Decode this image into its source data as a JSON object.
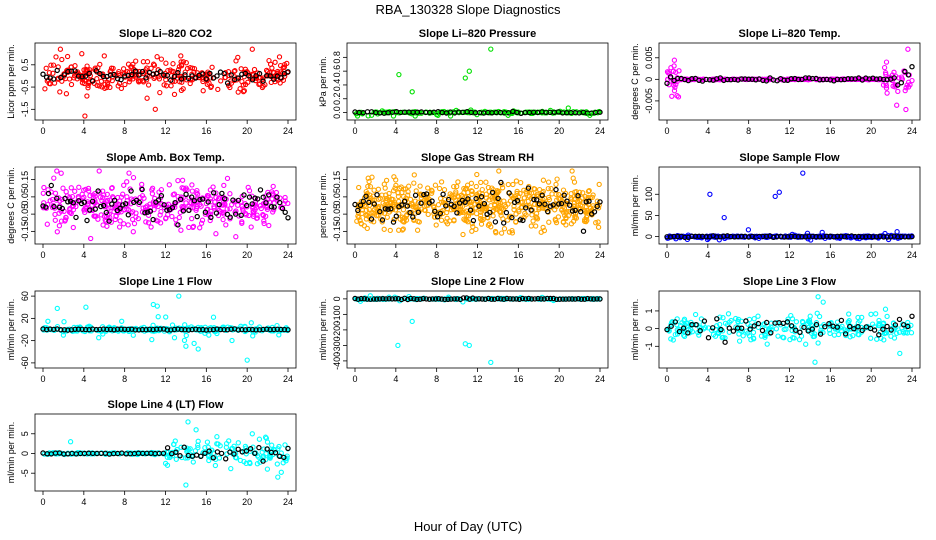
{
  "title": "RBA_130328  Slope Diagnostics",
  "xlabel": "Hour of Day (UTC)",
  "colors": {
    "black": "#000000",
    "red": "#ff0000",
    "green": "#00e000",
    "magenta": "#ff00ff",
    "orange": "#ffa500",
    "blue": "#0000ff",
    "cyan": "#00ffff"
  },
  "chart_data": [
    {
      "type": "scatter",
      "title": "Slope Li–820 CO2",
      "ylabel": "Licor ppm per min.",
      "xlim": [
        0,
        24
      ],
      "ylim": [
        -1.8,
        1.3
      ],
      "xticks": [
        "0",
        "4",
        "8",
        "12",
        "16",
        "20",
        "24"
      ],
      "yticks": [
        {
          "v": -1.5,
          "t": "-1.5"
        },
        {
          "v": -0.5,
          "t": "-0.5"
        },
        {
          "v": 0.5,
          "t": "0.5"
        }
      ],
      "color": "red",
      "pattern": "noisy",
      "sd": 0.32,
      "n": 320,
      "nb": 70,
      "bsd": 0.12,
      "outliers": [
        [
          1.7,
          1.2
        ],
        [
          3.8,
          1.0
        ],
        [
          4.1,
          -1.8
        ],
        [
          4.3,
          -0.9
        ],
        [
          6.0,
          0.9
        ],
        [
          10.2,
          -1.0
        ],
        [
          11.0,
          -1.5
        ],
        [
          13.5,
          0.9
        ],
        [
          20.5,
          1.2
        ]
      ]
    },
    {
      "type": "scatter",
      "title": "Slope Li–820 Pressure",
      "ylabel": "kPa per min.",
      "xlim": [
        0,
        24
      ],
      "ylim": [
        -0.05,
        0.95
      ],
      "xticks": [
        "0",
        "4",
        "8",
        "12",
        "16",
        "20",
        "24"
      ],
      "yticks": [
        {
          "v": 0,
          "t": "0.0"
        },
        {
          "v": 0.2,
          "t": "0.2"
        },
        {
          "v": 0.4,
          "t": "0.4"
        },
        {
          "v": 0.6,
          "t": "0.6"
        },
        {
          "v": 0.8,
          "t": "0.8"
        }
      ],
      "color": "green",
      "pattern": "flat",
      "sd": 0.015,
      "n": 200,
      "nb": 60,
      "bsd": 0.006,
      "outliers": [
        [
          4.3,
          0.55
        ],
        [
          5.6,
          0.3
        ],
        [
          10.8,
          0.5
        ],
        [
          11.2,
          0.6
        ],
        [
          13.3,
          0.92
        ],
        [
          8.0,
          -0.03
        ],
        [
          15.0,
          -0.04
        ],
        [
          23.0,
          -0.04
        ]
      ]
    },
    {
      "type": "scatter",
      "title": "Slope Li–820 Temp.",
      "ylabel": "degrees C per min.",
      "xlim": [
        0,
        24
      ],
      "ylim": [
        -0.0085,
        0.0075
      ],
      "xticks": [
        "0",
        "4",
        "8",
        "12",
        "16",
        "20",
        "24"
      ],
      "yticks": [
        {
          "v": -0.005,
          "t": "-0.005"
        },
        {
          "v": 0,
          "t": "0"
        },
        {
          "v": 0.005,
          "t": "0.005"
        }
      ],
      "color": "magenta",
      "pattern": "edges",
      "sd": 0.0018,
      "n": 260,
      "nb": 70,
      "bsd": 0.00015,
      "outliers": [
        [
          23.6,
          0.007
        ],
        [
          23.4,
          -0.007
        ],
        [
          21.5,
          0.004
        ],
        [
          22.5,
          -0.006
        ]
      ]
    },
    {
      "type": "scatter",
      "title": "Slope Amb. Box Temp.",
      "ylabel": "degrees C per min.",
      "xlim": [
        0,
        24
      ],
      "ylim": [
        -0.2,
        0.2
      ],
      "xticks": [
        "0",
        "4",
        "8",
        "12",
        "16",
        "20",
        "24"
      ],
      "yticks": [
        {
          "v": -0.15,
          "t": "-0.15"
        },
        {
          "v": -0.05,
          "t": "-0.05"
        },
        {
          "v": 0.05,
          "t": "0.05"
        },
        {
          "v": 0.15,
          "t": "0.15"
        }
      ],
      "color": "magenta",
      "pattern": "noisy",
      "sd": 0.07,
      "n": 420,
      "nb": 90,
      "bsd": 0.05,
      "outliers": []
    },
    {
      "type": "scatter",
      "title": "Slope Gas Stream RH",
      "ylabel": "percent per min.",
      "xlim": [
        0,
        24
      ],
      "ylim": [
        -0.2,
        0.2
      ],
      "xticks": [
        "0",
        "4",
        "8",
        "12",
        "16",
        "20",
        "24"
      ],
      "yticks": [
        {
          "v": -0.15,
          "t": "-0.15"
        },
        {
          "v": -0.05,
          "t": "-0.05"
        },
        {
          "v": 0.05,
          "t": "0.05"
        },
        {
          "v": 0.15,
          "t": "0.15"
        }
      ],
      "color": "orange",
      "pattern": "noisy",
      "sd": 0.065,
      "n": 620,
      "nb": 90,
      "bsd": 0.05,
      "outliers": []
    },
    {
      "type": "scatter",
      "title": "Slope Sample Flow",
      "ylabel": "ml/min per min.",
      "xlim": [
        0,
        24
      ],
      "ylim": [
        -8,
        155
      ],
      "xticks": [
        "0",
        "4",
        "8",
        "12",
        "16",
        "20",
        "24"
      ],
      "yticks": [
        {
          "v": 0,
          "t": "0"
        },
        {
          "v": 50,
          "t": "50"
        },
        {
          "v": 100,
          "t": "100"
        }
      ],
      "color": "blue",
      "pattern": "flat",
      "sd": 2.0,
      "n": 320,
      "nb": 70,
      "bsd": 0.8,
      "outliers": [
        [
          4.2,
          100
        ],
        [
          5.6,
          45
        ],
        [
          10.6,
          95
        ],
        [
          11.0,
          105
        ],
        [
          13.3,
          150
        ],
        [
          15.2,
          10
        ],
        [
          9.0,
          -4
        ],
        [
          18.0,
          -3
        ]
      ]
    },
    {
      "type": "scatter",
      "title": "Slope Line 1 Flow",
      "ylabel": "ml/min per min.",
      "xlim": [
        0,
        24
      ],
      "ylim": [
        -62,
        62
      ],
      "xticks": [
        "0",
        "4",
        "8",
        "12",
        "16",
        "20",
        "24"
      ],
      "yticks": [
        {
          "v": -60,
          "t": "-60"
        },
        {
          "v": -20,
          "t": "-20"
        },
        {
          "v": 20,
          "t": "20"
        },
        {
          "v": 60,
          "t": "60"
        }
      ],
      "color": "cyan",
      "pattern": "flat",
      "sd": 6,
      "n": 260,
      "nb": 70,
      "bsd": 0.5,
      "outliers": [
        [
          1.4,
          38
        ],
        [
          4.2,
          40
        ],
        [
          10.8,
          45
        ],
        [
          11.2,
          42
        ],
        [
          13.3,
          60
        ],
        [
          14.0,
          -30
        ],
        [
          14.8,
          -25
        ],
        [
          15.2,
          -35
        ],
        [
          20.0,
          -55
        ],
        [
          2.0,
          -10
        ]
      ]
    },
    {
      "type": "scatter",
      "title": "Slope Line 2 Flow",
      "ylabel": "ml/min per min.",
      "xlim": [
        0,
        24
      ],
      "ylim": [
        -420,
        25
      ],
      "xticks": [
        "0",
        "4",
        "8",
        "12",
        "16",
        "20",
        "24"
      ],
      "yticks": [
        {
          "v": -400,
          "t": "-400"
        },
        {
          "v": -300,
          "t": "-300"
        },
        {
          "v": -200,
          "t": "-200"
        },
        {
          "v": -100,
          "t": "-100"
        },
        {
          "v": 0,
          "t": "0"
        }
      ],
      "color": "cyan",
      "pattern": "flat",
      "sd": 4,
      "n": 200,
      "nb": 80,
      "bsd": 2,
      "outliers": [
        [
          4.2,
          -300
        ],
        [
          5.6,
          -145
        ],
        [
          10.8,
          -290
        ],
        [
          11.2,
          -300
        ],
        [
          13.3,
          -410
        ],
        [
          1.5,
          20
        ]
      ]
    },
    {
      "type": "scatter",
      "title": "Slope Line 3 Flow",
      "ylabel": "ml/min per min.",
      "xlim": [
        0,
        24
      ],
      "ylim": [
        -2.0,
        1.9
      ],
      "xticks": [
        "0",
        "4",
        "8",
        "12",
        "16",
        "20",
        "24"
      ],
      "yticks": [
        {
          "v": -1,
          "t": "-1"
        },
        {
          "v": 0,
          "t": "0"
        },
        {
          "v": 1,
          "t": "1"
        }
      ],
      "color": "cyan",
      "pattern": "noisy",
      "sd": 0.35,
      "n": 260,
      "nb": 60,
      "bsd": 0.25,
      "outliers": [
        [
          2.8,
          0.8
        ],
        [
          14.8,
          1.8
        ],
        [
          14.5,
          -1.9
        ],
        [
          15.3,
          1.5
        ],
        [
          22.8,
          -1.4
        ],
        [
          21.4,
          1.1
        ]
      ]
    },
    {
      "type": "scatter",
      "title": "Slope Line 4 (LT) Flow",
      "ylabel": "ml/min per min.",
      "xlim": [
        0,
        24
      ],
      "ylim": [
        -8.5,
        9
      ],
      "xticks": [
        "0",
        "4",
        "8",
        "12",
        "16",
        "20",
        "24"
      ],
      "yticks": [
        {
          "v": -5,
          "t": "-5"
        },
        {
          "v": 0,
          "t": "0"
        },
        {
          "v": 5,
          "t": "5"
        }
      ],
      "color": "cyan",
      "pattern": "late",
      "sd": 1.6,
      "n": 240,
      "nb": 60,
      "bsd": 0.9,
      "outliers": [
        [
          14.2,
          8
        ],
        [
          14.0,
          -8
        ],
        [
          12.2,
          -3
        ],
        [
          2.7,
          3
        ],
        [
          20.5,
          5
        ],
        [
          23.0,
          -6
        ],
        [
          15.0,
          6
        ]
      ]
    }
  ]
}
